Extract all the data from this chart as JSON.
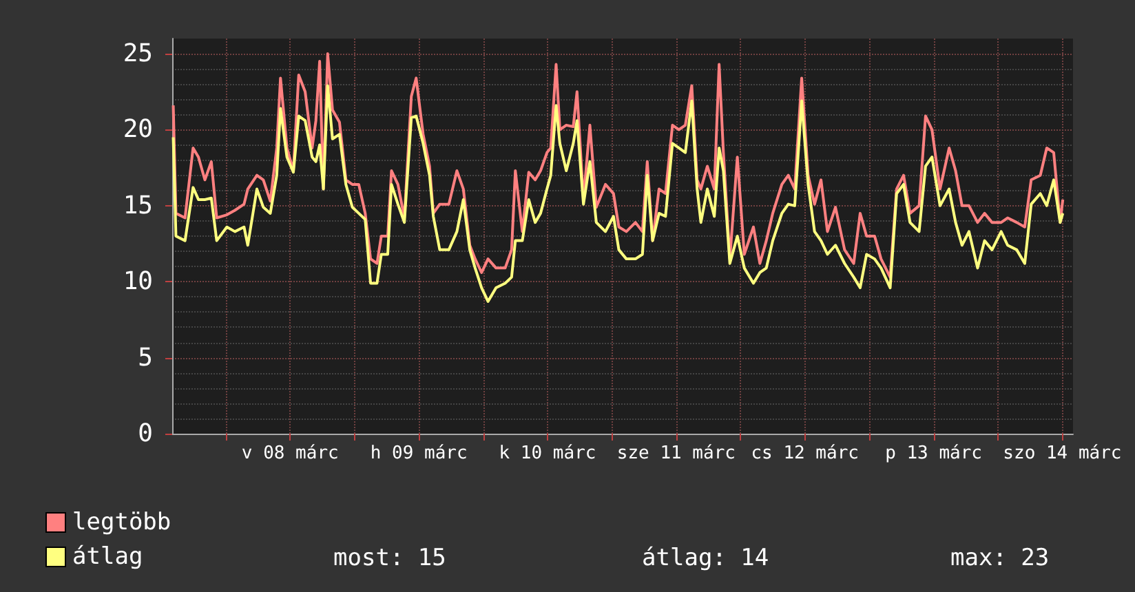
{
  "chart_data": {
    "type": "line",
    "x": [
      "--03-07T14:12",
      "--03-07T14:42",
      "--03-07T16:24",
      "--03-07T17:54",
      "--03-07T18:54",
      "--03-07T20:06",
      "--03-07T21:18",
      "--03-07T22:18",
      "--03-08T00:12",
      "--03-08T01:42",
      "--03-08T03:24",
      "--03-08T04:06",
      "--03-08T05:48",
      "--03-08T07:00",
      "--03-08T08:18",
      "--03-08T09:30",
      "--03-08T10:12",
      "--03-08T11:24",
      "--03-08T12:36",
      "--03-08T13:36",
      "--03-08T14:48",
      "--03-08T16:06",
      "--03-08T16:48",
      "--03-08T17:30",
      "--03-08T18:12",
      "--03-08T19:00",
      "--03-08T19:54",
      "--03-08T21:12",
      "--03-08T22:24",
      "--03-08T23:36",
      "--03-09T00:48",
      "--03-09T02:00",
      "--03-09T03:00",
      "--03-09T04:12",
      "--03-09T05:00",
      "--03-09T06:12",
      "--03-09T06:54",
      "--03-09T08:06",
      "--03-09T09:18",
      "--03-09T10:36",
      "--03-09T11:30",
      "--03-09T12:48",
      "--03-09T14:00",
      "--03-09T14:42",
      "--03-09T15:54",
      "--03-09T17:36",
      "--03-09T19:06",
      "--03-09T20:18",
      "--03-09T21:30",
      "--03-09T22:30",
      "--03-09T23:42",
      "--03-10T00:54",
      "--03-10T02:24",
      "--03-10T04:06",
      "--03-10T05:18",
      "--03-10T06:00",
      "--03-10T07:18",
      "--03-10T08:30",
      "--03-10T09:42",
      "--03-10T10:42",
      "--03-10T11:54",
      "--03-10T12:36",
      "--03-10T13:36",
      "--03-10T14:18",
      "--03-10T15:30",
      "--03-10T16:48",
      "--03-10T17:30",
      "--03-10T18:42",
      "--03-10T19:54",
      "--03-10T21:06",
      "--03-10T22:48",
      "--03-11T00:18",
      "--03-11T01:18",
      "--03-11T02:42",
      "--03-11T04:24",
      "--03-11T05:42",
      "--03-11T06:36",
      "--03-11T07:36",
      "--03-11T08:48",
      "--03-11T10:00",
      "--03-11T11:18",
      "--03-11T12:30",
      "--03-11T13:42",
      "--03-11T14:54",
      "--03-11T15:54",
      "--03-11T16:36",
      "--03-11T17:48",
      "--03-11T19:06",
      "--03-11T20:00",
      "--03-11T20:48",
      "--03-11T22:00",
      "--03-11T23:24",
      "--03-12T00:42",
      "--03-12T02:24",
      "--03-12T03:36",
      "--03-12T04:48",
      "--03-12T06:00",
      "--03-12T07:42",
      "--03-12T08:54",
      "--03-12T10:06",
      "--03-12T11:24",
      "--03-12T12:36",
      "--03-12T13:48",
      "--03-12T15:00",
      "--03-12T16:12",
      "--03-12T17:42",
      "--03-12T19:24",
      "--03-12T21:06",
      "--03-12T22:18",
      "--03-12T23:30",
      "--03-13T01:00",
      "--03-13T02:12",
      "--03-13T03:54",
      "--03-13T05:06",
      "--03-13T06:24",
      "--03-13T07:36",
      "--03-13T09:18",
      "--03-13T10:30",
      "--03-13T11:42",
      "--03-13T13:12",
      "--03-13T14:54",
      "--03-13T16:06",
      "--03-13T17:18",
      "--03-13T18:36",
      "--03-13T20:12",
      "--03-13T21:30",
      "--03-13T22:54",
      "--03-14T00:36",
      "--03-14T01:48",
      "--03-14T03:30",
      "--03-14T05:00",
      "--03-14T06:12",
      "--03-14T07:54",
      "--03-14T09:06",
      "--03-14T10:24",
      "--03-14T11:36",
      "--03-14T12:06"
    ],
    "series": [
      {
        "name": "legtöbb",
        "color": "#ff8080",
        "values": [
          21.6,
          14.5,
          14.2,
          18.8,
          18.2,
          16.7,
          17.9,
          14.2,
          14.4,
          14.7,
          15.1,
          16.1,
          17.0,
          16.7,
          15.3,
          18.8,
          23.4,
          18.8,
          17.3,
          23.6,
          22.5,
          18.8,
          20.6,
          24.5,
          16.1,
          25.0,
          21.3,
          20.5,
          16.7,
          16.4,
          16.4,
          14.5,
          11.5,
          11.2,
          13.0,
          13.0,
          17.3,
          16.4,
          14.2,
          22.2,
          23.4,
          19.7,
          17.6,
          14.5,
          15.1,
          15.1,
          17.3,
          16.1,
          12.4,
          11.5,
          10.6,
          11.5,
          10.9,
          10.9,
          12.1,
          17.3,
          13.3,
          17.2,
          16.7,
          17.3,
          18.5,
          18.8,
          24.3,
          20.0,
          20.3,
          20.2,
          22.5,
          15.4,
          20.3,
          14.9,
          16.4,
          15.8,
          13.6,
          13.3,
          13.9,
          13.3,
          17.9,
          12.7,
          16.1,
          15.8,
          20.3,
          20.0,
          20.3,
          22.9,
          16.7,
          16.1,
          17.6,
          16.1,
          24.3,
          18.5,
          11.5,
          18.2,
          11.8,
          13.6,
          11.2,
          12.7,
          14.5,
          16.4,
          17.0,
          16.1,
          23.4,
          17.0,
          15.1,
          16.7,
          13.3,
          14.9,
          12.1,
          11.2,
          14.5,
          13.0,
          13.0,
          11.5,
          10.3,
          16.1,
          17.0,
          14.5,
          15.0,
          20.9,
          20.0,
          16.1,
          18.8,
          17.3,
          15.0,
          15.0,
          13.9,
          14.5,
          13.9,
          13.9,
          14.2,
          13.9,
          13.6,
          16.7,
          17.0,
          18.8,
          18.5,
          13.9,
          15.4
        ]
      },
      {
        "name": "átlag",
        "color": "#ffff80",
        "values": [
          19.5,
          13.0,
          12.7,
          16.2,
          15.4,
          15.4,
          15.5,
          12.7,
          13.6,
          13.3,
          13.6,
          12.4,
          16.1,
          14.9,
          14.5,
          17.0,
          21.4,
          18.2,
          17.2,
          20.9,
          20.6,
          18.2,
          17.9,
          19.0,
          16.1,
          22.9,
          19.4,
          19.7,
          16.4,
          14.9,
          14.5,
          14.1,
          9.9,
          9.9,
          11.8,
          11.8,
          16.4,
          15.1,
          13.9,
          20.8,
          20.9,
          19.1,
          17.0,
          14.3,
          12.1,
          12.1,
          13.3,
          15.4,
          12.1,
          10.9,
          9.6,
          8.7,
          9.6,
          9.9,
          10.3,
          12.7,
          12.7,
          15.4,
          13.9,
          14.5,
          16.1,
          17.0,
          21.6,
          19.1,
          17.3,
          19.1,
          20.6,
          15.1,
          17.9,
          13.9,
          13.3,
          14.3,
          12.1,
          11.5,
          11.5,
          11.8,
          17.0,
          12.7,
          14.5,
          14.3,
          19.1,
          18.8,
          18.5,
          21.9,
          16.1,
          13.9,
          16.1,
          14.3,
          18.8,
          17.3,
          11.2,
          13.0,
          10.9,
          9.9,
          10.6,
          10.9,
          12.7,
          14.5,
          15.1,
          15.0,
          21.9,
          16.4,
          13.3,
          12.7,
          11.8,
          12.4,
          11.2,
          10.3,
          9.6,
          11.8,
          11.5,
          10.9,
          9.6,
          15.8,
          16.4,
          13.9,
          13.3,
          17.6,
          18.2,
          15.0,
          16.1,
          13.9,
          12.4,
          13.3,
          10.9,
          12.7,
          12.1,
          13.3,
          12.4,
          12.1,
          11.2,
          15.1,
          15.8,
          15.0,
          16.7,
          13.9,
          14.5
        ]
      }
    ],
    "xlim": [
      "--03-07T14:00",
      "--03-14T14:00"
    ],
    "xticks": [
      {
        "value": "--03-08",
        "label": null
      },
      {
        "value": "--03-08T12:00",
        "label": "v 08 márc"
      },
      {
        "value": "--03-09",
        "label": null
      },
      {
        "value": "--03-09T12:00",
        "label": "h 09 márc"
      },
      {
        "value": "--03-10",
        "label": null
      },
      {
        "value": "--03-10T12:00",
        "label": "k 10 márc"
      },
      {
        "value": "--03-11",
        "label": null
      },
      {
        "value": "--03-11T12:00",
        "label": "sze 11 márc"
      },
      {
        "value": "--03-12",
        "label": null
      },
      {
        "value": "--03-12T12:00",
        "label": "cs 12 márc"
      },
      {
        "value": "--03-13",
        "label": null
      },
      {
        "value": "--03-13T12:00",
        "label": "p 13 márc"
      },
      {
        "value": "--03-14",
        "label": null
      },
      {
        "value": "--03-14T12:00",
        "label": "szo 14 márc"
      }
    ],
    "ylim": [
      0,
      26
    ],
    "yticks": [
      0,
      5,
      10,
      15,
      20,
      25
    ],
    "grid": true,
    "legend": "bottom left",
    "marker": "none",
    "line_style": "solid",
    "annotations": [
      "most: 15",
      "átlag: 14",
      "max: 23"
    ]
  }
}
